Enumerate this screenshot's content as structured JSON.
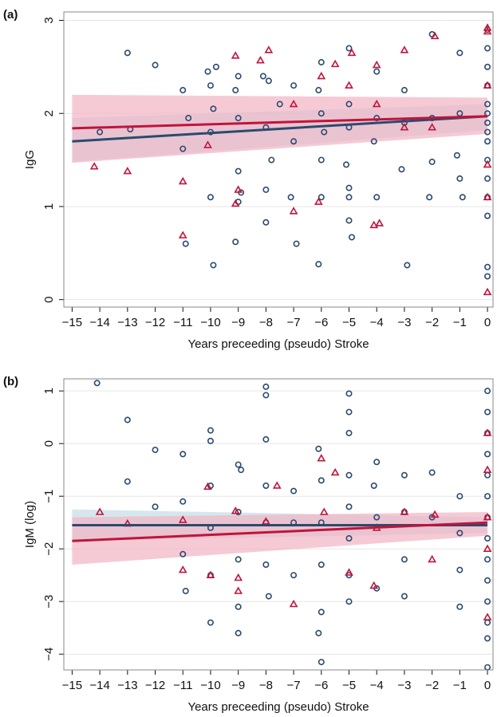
{
  "chart_data": [
    {
      "type": "scatter",
      "panel_label": "(a)",
      "x_label": "Years preceeding (pseudo) Stroke",
      "y_label": "IgG",
      "xlim": [
        -15.3,
        0.2
      ],
      "ylim": [
        -0.08,
        3.09
      ],
      "grid": true,
      "xticks": [
        {
          "value": -15,
          "label": "−15"
        },
        {
          "value": -14,
          "label": "−14"
        },
        {
          "value": -13,
          "label": "−13"
        },
        {
          "value": -12,
          "label": "−12"
        },
        {
          "value": -11,
          "label": "−11"
        },
        {
          "value": -10,
          "label": "−10"
        },
        {
          "value": -9,
          "label": "−9"
        },
        {
          "value": -8,
          "label": "−8"
        },
        {
          "value": -7,
          "label": "−7"
        },
        {
          "value": -6,
          "label": "−6"
        },
        {
          "value": -5,
          "label": "−5"
        },
        {
          "value": -4,
          "label": "−4"
        },
        {
          "value": -3,
          "label": "−3"
        },
        {
          "value": -2,
          "label": "−2"
        },
        {
          "value": -1,
          "label": "−1"
        },
        0
      ],
      "yticks": [
        0,
        1,
        2,
        3
      ],
      "series": [
        {
          "marker": "circle",
          "color": "#2b4a6f",
          "x": [
            -14,
            -13,
            -12.9,
            -12,
            -11,
            -10.9,
            -11,
            -10.8,
            -10.1,
            -10,
            -10,
            -9.9,
            -9.8,
            -10,
            -9.9,
            -9,
            -9.1,
            -9,
            -9.1,
            -9,
            -9,
            -8.9,
            -8.1,
            -8,
            -8,
            -8,
            -7.9,
            -7.8,
            -7.5,
            -7,
            -7.1,
            -6.9,
            -7,
            -6.1,
            -6,
            -6,
            -6,
            -6.1,
            -5.9,
            -6,
            -5,
            -5,
            -5,
            -5.1,
            -5,
            -5,
            -4.9,
            -5,
            -4.1,
            -4,
            -4,
            -4,
            -3,
            -3.1,
            -2.9,
            -3,
            -2,
            -2,
            -2.1,
            -2,
            -1,
            -1,
            -1.1,
            -1,
            -0.9,
            0,
            0,
            0,
            0,
            0,
            0,
            0,
            0,
            0,
            0,
            0,
            0,
            0,
            0,
            0
          ],
          "values": [
            1.8,
            2.65,
            1.83,
            2.52,
            2.25,
            0.6,
            1.62,
            1.95,
            2.45,
            2.3,
            1.1,
            0.37,
            2.5,
            1.8,
            2.05,
            2.4,
            2.25,
            1.38,
            0.62,
            1.05,
            1.95,
            1.15,
            2.4,
            1.85,
            1.18,
            0.83,
            2.35,
            1.5,
            2.1,
            2.3,
            1.1,
            0.6,
            1.7,
            2.25,
            2.0,
            1.5,
            1.1,
            0.38,
            1.8,
            2.55,
            2.7,
            2.1,
            1.85,
            1.45,
            1.1,
            0.85,
            0.67,
            1.2,
            1.7,
            1.1,
            1.95,
            2.45,
            1.9,
            1.4,
            0.37,
            2.25,
            2.85,
            1.95,
            1.1,
            1.48,
            2.65,
            2.0,
            1.55,
            1.3,
            1.1,
            2.9,
            2.7,
            2.5,
            2.3,
            2.1,
            1.9,
            1.7,
            1.5,
            1.3,
            1.1,
            0.9,
            0.35,
            0.25,
            2.0,
            1.8
          ]
        },
        {
          "marker": "triangle",
          "color": "#c0143c",
          "x": [
            -14.2,
            -13,
            -11,
            -11,
            -10.1,
            -9.1,
            -9,
            -9.1,
            -8.2,
            -7.9,
            -7,
            -7,
            -6.1,
            -6,
            -5.5,
            -5,
            -4.9,
            -4,
            -4,
            -4.1,
            -3.9,
            -3,
            -3,
            -1.9,
            -2,
            0,
            0,
            0,
            0,
            0,
            0
          ],
          "values": [
            1.43,
            1.38,
            1.27,
            0.69,
            1.66,
            2.62,
            1.18,
            1.03,
            2.57,
            2.68,
            2.1,
            0.95,
            1.05,
            2.4,
            2.53,
            2.3,
            2.65,
            2.52,
            2.1,
            0.8,
            0.82,
            2.68,
            1.85,
            2.83,
            1.85,
            2.92,
            2.88,
            1.45,
            1.1,
            0.08,
            2.3
          ]
        }
      ],
      "fits": [
        {
          "color": "#2b4a6f",
          "band_color": "#c5dbe6",
          "x": [
            -15,
            0
          ],
          "values": [
            1.7,
            1.97
          ],
          "lower": [
            1.48,
            1.82
          ],
          "upper": [
            1.95,
            2.1
          ]
        },
        {
          "color": "#c0143c",
          "band_color": "#f2b3c3",
          "x": [
            -15,
            0
          ],
          "values": [
            1.84,
            1.97
          ],
          "lower": [
            1.47,
            1.78
          ],
          "upper": [
            2.2,
            2.17
          ]
        }
      ]
    },
    {
      "type": "scatter",
      "panel_label": "(b)",
      "x_label": "Years preceeding (pseudo) Stroke",
      "y_label": "IgM (log)",
      "xlim": [
        -15.3,
        0.2
      ],
      "ylim": [
        -4.3,
        1.23
      ],
      "grid": true,
      "xticks": [
        {
          "value": -15,
          "label": "−15"
        },
        {
          "value": -14,
          "label": "−14"
        },
        {
          "value": -13,
          "label": "−13"
        },
        {
          "value": -12,
          "label": "−12"
        },
        {
          "value": -11,
          "label": "−11"
        },
        {
          "value": -10,
          "label": "−10"
        },
        {
          "value": -9,
          "label": "−9"
        },
        {
          "value": -8,
          "label": "−8"
        },
        {
          "value": -7,
          "label": "−7"
        },
        {
          "value": -6,
          "label": "−6"
        },
        {
          "value": -5,
          "label": "−5"
        },
        {
          "value": -4,
          "label": "−4"
        },
        {
          "value": -3,
          "label": "−3"
        },
        {
          "value": -2,
          "label": "−2"
        },
        {
          "value": -1,
          "label": "−1"
        },
        0
      ],
      "yticks": [
        {
          "value": -4,
          "label": "−4"
        },
        {
          "value": -3,
          "label": "−3"
        },
        {
          "value": -2,
          "label": "−2"
        },
        {
          "value": -1,
          "label": "−1"
        },
        0,
        1
      ],
      "series": [
        {
          "marker": "circle",
          "color": "#2b4a6f",
          "x": [
            -14.1,
            -13,
            -13,
            -12,
            -12,
            -11,
            -11,
            -11,
            -10.9,
            -10,
            -10,
            -10,
            -10,
            -10,
            -10,
            -9,
            -9,
            -9,
            -9,
            -9,
            -8.9,
            -8,
            -8,
            -8,
            -8,
            -8,
            -8,
            -7.9,
            -7,
            -7,
            -7,
            -6.1,
            -6,
            -6,
            -6,
            -6,
            -6.1,
            -6,
            -5,
            -5,
            -5,
            -5,
            -5,
            -5,
            -5,
            -5,
            -4.1,
            -4,
            -4,
            -4,
            -3,
            -3,
            -3,
            -3,
            -2,
            -2,
            -1,
            -1,
            -1,
            -1,
            0,
            0,
            0,
            0,
            0,
            0,
            0,
            0,
            0,
            0,
            0,
            0,
            0,
            0
          ],
          "values": [
            1.15,
            0.45,
            -0.72,
            -0.12,
            -1.2,
            -0.2,
            -1.1,
            -2.1,
            -2.8,
            0.25,
            0.05,
            -0.8,
            -1.6,
            -2.5,
            -3.4,
            -0.4,
            -1.3,
            -2.2,
            -3.1,
            -3.6,
            -0.5,
            1.08,
            0.92,
            0.08,
            -0.8,
            -1.5,
            -2.3,
            -2.9,
            -0.9,
            -1.5,
            -2.5,
            -0.1,
            -0.7,
            -1.5,
            -2.3,
            -3.2,
            -3.6,
            -4.15,
            0.95,
            0.6,
            0.2,
            -0.6,
            -1.2,
            -1.8,
            -2.5,
            -3.0,
            -0.8,
            -1.4,
            -2.75,
            -0.35,
            -0.6,
            -1.3,
            -2.2,
            -2.9,
            -0.55,
            -1.4,
            -1.0,
            -1.7,
            -2.4,
            -3.1,
            1.0,
            0.6,
            0.2,
            -0.2,
            -0.6,
            -1.0,
            -1.4,
            -1.8,
            -2.2,
            -2.6,
            -3.0,
            -3.4,
            -3.7,
            -4.25
          ]
        },
        {
          "marker": "triangle",
          "color": "#c0143c",
          "x": [
            -14,
            -13,
            -11,
            -11,
            -10.1,
            -10,
            -9.1,
            -9,
            -9,
            -8,
            -7.6,
            -7,
            -6,
            -5.9,
            -5.5,
            -5,
            -4.1,
            -4,
            -3,
            -2,
            -1.9,
            0,
            0,
            0,
            0,
            0
          ],
          "values": [
            -1.3,
            -1.52,
            -1.45,
            -2.4,
            -0.82,
            -2.5,
            -1.28,
            -2.55,
            -2.8,
            -1.48,
            -0.8,
            -3.05,
            -0.28,
            -1.3,
            -0.55,
            -2.45,
            -2.7,
            -1.6,
            -1.3,
            -2.2,
            -1.35,
            0.2,
            -0.5,
            -1.4,
            -2.0,
            -3.3
          ]
        }
      ],
      "fits": [
        {
          "color": "#2b4a6f",
          "band_color": "#c5dbe6",
          "x": [
            -15,
            0
          ],
          "values": [
            -1.55,
            -1.55
          ],
          "lower": [
            -1.85,
            -1.7
          ],
          "upper": [
            -1.25,
            -1.4
          ]
        },
        {
          "color": "#c0143c",
          "band_color": "#f2b3c3",
          "x": [
            -15,
            0
          ],
          "values": [
            -1.85,
            -1.5
          ],
          "lower": [
            -2.3,
            -1.75
          ],
          "upper": [
            -1.4,
            -1.3
          ]
        }
      ]
    }
  ]
}
